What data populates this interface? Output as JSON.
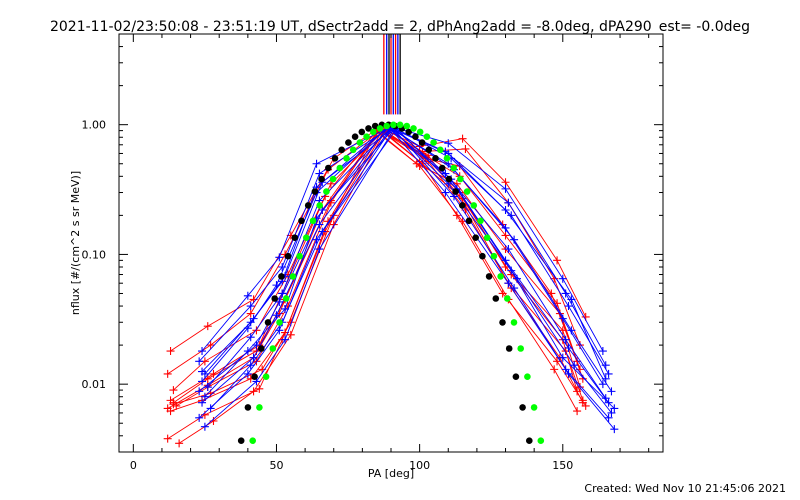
{
  "chart_data": {
    "type": "line",
    "title": "2021-11-02/23:50:08 - 23:51:19 UT, dSectr2add = 2, dPhAng2add = -8.0deg, dPA290_est= -0.0deg",
    "xlabel": "PA [deg]",
    "ylabel": "nflux [#/(cm^2 s sr MeV)]",
    "footer": "Created: Wed Nov 10 21:45:06 2021",
    "xlim": [
      -5,
      185
    ],
    "ylim": [
      0.003,
      5
    ],
    "yscale": "log",
    "x_ticks": [
      0,
      50,
      100,
      150
    ],
    "x_tick_labels": [
      "0",
      "50",
      "100",
      "150"
    ],
    "y_ticks": [
      0.01,
      0.1,
      1.0
    ],
    "y_tick_labels": [
      "0.01",
      "0.10",
      "1.00"
    ],
    "colors": {
      "red": "#ff0000",
      "blue": "#0000ff",
      "black": "#000000",
      "green": "#00ff00"
    },
    "vertical_lines": {
      "y_from": 1.2,
      "lines": [
        {
          "x": 87.5,
          "color": "#ff0000"
        },
        {
          "x": 88.5,
          "color": "#0000ff"
        },
        {
          "x": 89.3,
          "color": "#000000"
        },
        {
          "x": 90.0,
          "color": "#ff0000"
        },
        {
          "x": 90.8,
          "color": "#0000ff"
        },
        {
          "x": 91.6,
          "color": "#ff0000"
        },
        {
          "x": 92.4,
          "color": "#0000ff"
        },
        {
          "x": 93.2,
          "color": "#000000"
        }
      ]
    },
    "fit_curves": [
      {
        "color": "#000000",
        "center": 88,
        "n": 12.5,
        "points": 48
      },
      {
        "color": "#00ff00",
        "center": 92,
        "n": 12.5,
        "points": 48
      }
    ],
    "series": [
      {
        "color": "#ff0000",
        "x": [
          13,
          26,
          42,
          55,
          70,
          86,
          100,
          115,
          130,
          148,
          158
        ],
        "y": [
          0.018,
          0.028,
          0.045,
          0.14,
          0.55,
          0.95,
          0.68,
          0.78,
          0.36,
          0.09,
          0.033
        ]
      },
      {
        "color": "#ff0000",
        "x": [
          12,
          27,
          41,
          53,
          68,
          86,
          101,
          116,
          131,
          147,
          156
        ],
        "y": [
          0.012,
          0.02,
          0.035,
          0.1,
          0.45,
          0.9,
          0.62,
          0.65,
          0.25,
          0.065,
          0.02
        ]
      },
      {
        "color": "#ff0000",
        "x": [
          14,
          25,
          43,
          54,
          69,
          87,
          102,
          114,
          129,
          146,
          155
        ],
        "y": [
          0.009,
          0.015,
          0.026,
          0.07,
          0.35,
          0.88,
          0.55,
          0.48,
          0.17,
          0.05,
          0.015
        ]
      },
      {
        "color": "#ff0000",
        "x": [
          13,
          28,
          44,
          52,
          67,
          85,
          99,
          113,
          130,
          149,
          157
        ],
        "y": [
          0.0075,
          0.012,
          0.02,
          0.05,
          0.28,
          0.9,
          0.5,
          0.35,
          0.11,
          0.035,
          0.011
        ]
      },
      {
        "color": "#ff0000",
        "x": [
          12,
          26,
          42,
          51,
          66,
          86,
          100,
          115,
          132,
          150,
          155
        ],
        "y": [
          0.0065,
          0.0098,
          0.016,
          0.035,
          0.22,
          0.92,
          0.52,
          0.27,
          0.07,
          0.022,
          0.0088
        ]
      },
      {
        "color": "#ff0000",
        "x": [
          14,
          27,
          45,
          55,
          70,
          88,
          103,
          116,
          131,
          151,
          157
        ],
        "y": [
          0.007,
          0.0085,
          0.013,
          0.03,
          0.2,
          0.93,
          0.58,
          0.24,
          0.06,
          0.018,
          0.0075
        ]
      },
      {
        "color": "#ff0000",
        "x": [
          13,
          24,
          41,
          53,
          68,
          87,
          101,
          113,
          129,
          148,
          158
        ],
        "y": [
          0.0062,
          0.0075,
          0.011,
          0.025,
          0.18,
          0.9,
          0.5,
          0.2,
          0.05,
          0.015,
          0.0068
        ]
      },
      {
        "color": "#ff0000",
        "x": [
          15,
          26,
          43,
          54,
          69,
          86,
          102,
          114,
          130,
          150,
          156
        ],
        "y": [
          0.0068,
          0.0095,
          0.015,
          0.04,
          0.25,
          0.95,
          0.56,
          0.3,
          0.08,
          0.026,
          0.0095
        ]
      },
      {
        "color": "#ff0000",
        "x": [
          12,
          25,
          44,
          52,
          67,
          85,
          100,
          115,
          131,
          147,
          155
        ],
        "y": [
          0.0038,
          0.0058,
          0.0092,
          0.022,
          0.15,
          0.88,
          0.48,
          0.18,
          0.045,
          0.013,
          0.0062
        ]
      },
      {
        "color": "#ff0000",
        "x": [
          16,
          28,
          42,
          55,
          70,
          88,
          103,
          116,
          132,
          149,
          157
        ],
        "y": [
          0.0035,
          0.0052,
          0.0088,
          0.024,
          0.17,
          0.9,
          0.52,
          0.22,
          0.055,
          0.016,
          0.0072
        ]
      },
      {
        "color": "#ff0000",
        "x": [
          14,
          26,
          43,
          53,
          69,
          86,
          101,
          114,
          130,
          148,
          156
        ],
        "y": [
          0.0072,
          0.011,
          0.018,
          0.045,
          0.26,
          0.9,
          0.6,
          0.4,
          0.14,
          0.042,
          0.013
        ]
      },
      {
        "color": "#0000ff",
        "x": [
          24,
          40,
          51,
          64,
          90,
          110,
          130,
          150,
          164
        ],
        "y": [
          0.018,
          0.048,
          0.095,
          0.5,
          0.97,
          0.72,
          0.32,
          0.065,
          0.018
        ]
      },
      {
        "color": "#0000ff",
        "x": [
          23,
          41,
          52,
          65,
          90,
          109,
          131,
          151,
          165
        ],
        "y": [
          0.015,
          0.04,
          0.08,
          0.42,
          0.96,
          0.62,
          0.25,
          0.05,
          0.014
        ]
      },
      {
        "color": "#0000ff",
        "x": [
          25,
          42,
          53,
          66,
          91,
          111,
          132,
          152,
          166
        ],
        "y": [
          0.012,
          0.032,
          0.068,
          0.36,
          0.95,
          0.55,
          0.2,
          0.04,
          0.012
        ]
      },
      {
        "color": "#0000ff",
        "x": [
          24,
          40,
          50,
          64,
          89,
          110,
          130,
          150,
          164
        ],
        "y": [
          0.0105,
          0.027,
          0.058,
          0.3,
          0.96,
          0.5,
          0.16,
          0.032,
          0.01
        ]
      },
      {
        "color": "#0000ff",
        "x": [
          26,
          41,
          52,
          65,
          90,
          112,
          133,
          153,
          167
        ],
        "y": [
          0.0095,
          0.023,
          0.05,
          0.26,
          0.95,
          0.45,
          0.13,
          0.026,
          0.0088
        ]
      },
      {
        "color": "#0000ff",
        "x": [
          23,
          43,
          51,
          66,
          91,
          109,
          131,
          151,
          165
        ],
        "y": [
          0.0088,
          0.02,
          0.043,
          0.22,
          0.94,
          0.42,
          0.11,
          0.022,
          0.0078
        ]
      },
      {
        "color": "#0000ff",
        "x": [
          25,
          40,
          53,
          64,
          89,
          111,
          130,
          152,
          166
        ],
        "y": [
          0.008,
          0.018,
          0.038,
          0.19,
          0.95,
          0.38,
          0.09,
          0.019,
          0.0072
        ]
      },
      {
        "color": "#0000ff",
        "x": [
          24,
          42,
          50,
          65,
          90,
          110,
          132,
          150,
          168
        ],
        "y": [
          0.0072,
          0.016,
          0.034,
          0.17,
          0.94,
          0.35,
          0.075,
          0.016,
          0.0065
        ]
      },
      {
        "color": "#0000ff",
        "x": [
          27,
          41,
          52,
          66,
          92,
          113,
          134,
          154,
          167
        ],
        "y": [
          0.0065,
          0.014,
          0.03,
          0.15,
          0.93,
          0.32,
          0.065,
          0.014,
          0.006
        ]
      },
      {
        "color": "#0000ff",
        "x": [
          23,
          40,
          51,
          64,
          90,
          109,
          131,
          151,
          166
        ],
        "y": [
          0.0055,
          0.012,
          0.026,
          0.13,
          0.92,
          0.3,
          0.06,
          0.013,
          0.0055
        ]
      },
      {
        "color": "#0000ff",
        "x": [
          25,
          43,
          53,
          65,
          91,
          112,
          133,
          152,
          168
        ],
        "y": [
          0.0047,
          0.0105,
          0.022,
          0.11,
          0.92,
          0.28,
          0.055,
          0.012,
          0.0045
        ]
      },
      {
        "color": "#0000ff",
        "x": [
          24,
          41,
          52,
          64,
          89,
          110,
          130,
          153,
          165
        ],
        "y": [
          0.0125,
          0.03,
          0.062,
          0.33,
          0.96,
          0.6,
          0.22,
          0.045,
          0.011
        ]
      }
    ]
  }
}
